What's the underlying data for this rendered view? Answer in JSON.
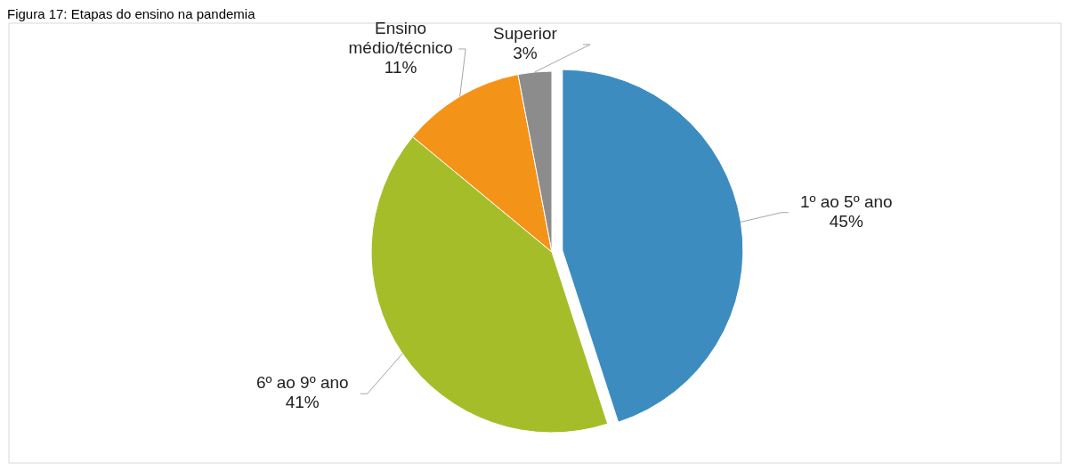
{
  "chart_data": {
    "type": "pie",
    "title": "Figura 17: Etapas do ensino na pandemia",
    "categories": [
      "1º ao 5º ano",
      "6º ao 9º ano",
      "Ensino médio/técnico",
      "Superior"
    ],
    "values": [
      45,
      41,
      11,
      3
    ],
    "value_labels": [
      "45%",
      "41%",
      "11%",
      "3%"
    ],
    "colors": [
      "#3d8cc0",
      "#a6bd2a",
      "#f39418",
      "#8c8c8c"
    ]
  }
}
